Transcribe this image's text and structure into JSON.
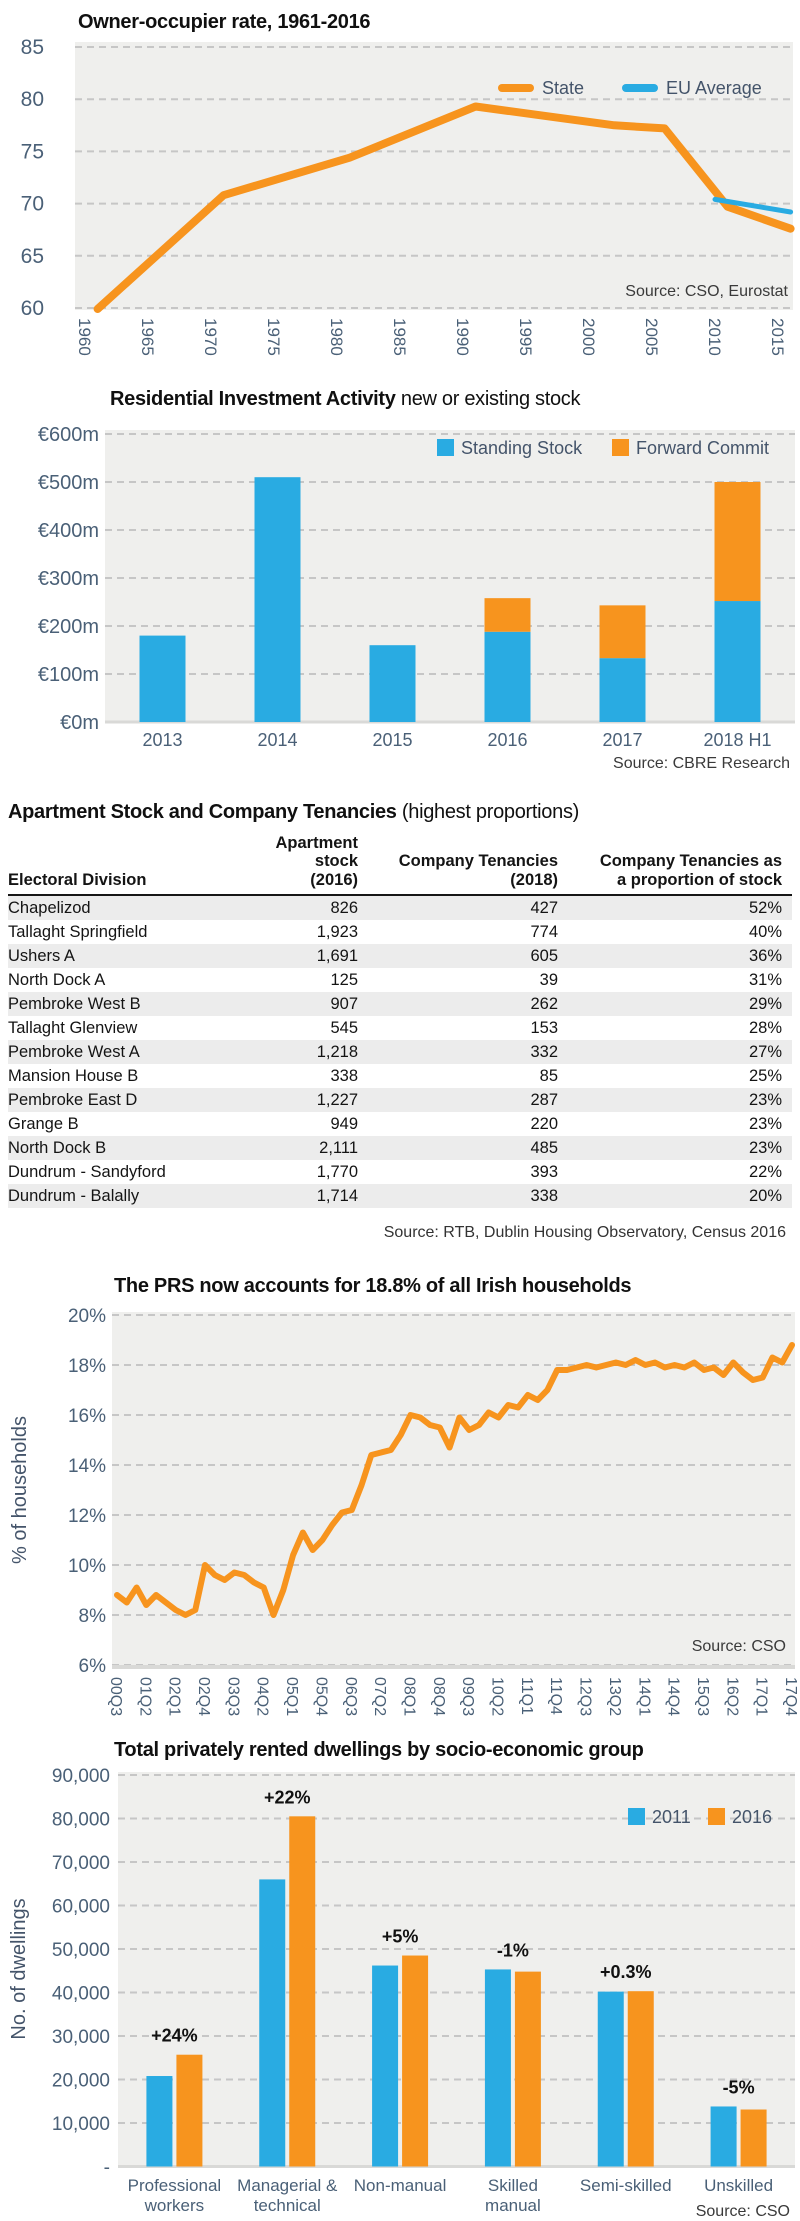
{
  "colors": {
    "orange": "#F7941E",
    "blue": "#29ABE2",
    "plot_bg": "#EFEFED",
    "grid": "#C6C6C6",
    "tick": "#4A6077",
    "legend_text": "#44546A",
    "source": "#3A3A3A",
    "baseline": "#D9D9D7",
    "table_alt_row": "#ECECEC"
  },
  "chart_data": [
    {
      "id": "owner_occupier",
      "type": "line",
      "title": "Owner-occupier rate, 1961-2016",
      "source": "Source: CSO, Eurostat",
      "legend": [
        {
          "label": "State",
          "color": "#F7941E"
        },
        {
          "label": "EU Average",
          "color": "#29ABE2"
        }
      ],
      "ylim": [
        60,
        85
      ],
      "yticks": [
        {
          "v": 60,
          "label": "60"
        },
        {
          "v": 65,
          "label": "65"
        },
        {
          "v": 70,
          "label": "70"
        },
        {
          "v": 75,
          "label": "75"
        },
        {
          "v": 80,
          "label": "80"
        },
        {
          "v": 85,
          "label": "85"
        }
      ],
      "xticks": [
        {
          "v": 1960,
          "label": "1960"
        },
        {
          "v": 1965,
          "label": "1965"
        },
        {
          "v": 1970,
          "label": "1970"
        },
        {
          "v": 1975,
          "label": "1975"
        },
        {
          "v": 1980,
          "label": "1980"
        },
        {
          "v": 1985,
          "label": "1985"
        },
        {
          "v": 1990,
          "label": "1990"
        },
        {
          "v": 1995,
          "label": "1995"
        },
        {
          "v": 2000,
          "label": "2000"
        },
        {
          "v": 2005,
          "label": "2005"
        },
        {
          "v": 2010,
          "label": "2010"
        },
        {
          "v": 2015,
          "label": "2015"
        }
      ],
      "series": [
        {
          "name": "State",
          "color": "#F7941E",
          "points": [
            [
              1961,
              59.8
            ],
            [
              1971,
              70.8
            ],
            [
              1981,
              74.4
            ],
            [
              1991,
              79.3
            ],
            [
              2002,
              77.5
            ],
            [
              2006,
              77.2
            ],
            [
              2011,
              69.7
            ],
            [
              2016,
              67.6
            ]
          ]
        },
        {
          "name": "EU Average",
          "color": "#29ABE2",
          "points": [
            [
              2010,
              70.4
            ],
            [
              2016,
              69.2
            ]
          ]
        }
      ]
    },
    {
      "id": "investment",
      "type": "stacked_bar",
      "title_bold": "Residential Investment Activity",
      "title_regular": " new or existing stock",
      "source": "Source: CBRE Research",
      "categories": [
        "2013",
        "2014",
        "2015",
        "2016",
        "2017",
        "2018 H1"
      ],
      "ylim": [
        0,
        600
      ],
      "yticks": [
        {
          "v": 0,
          "label": "€0m"
        },
        {
          "v": 100,
          "label": "€100m"
        },
        {
          "v": 200,
          "label": "€200m"
        },
        {
          "v": 300,
          "label": "€300m"
        },
        {
          "v": 400,
          "label": "€400m"
        },
        {
          "v": 500,
          "label": "€500m"
        },
        {
          "v": 600,
          "label": "€600m"
        }
      ],
      "series": [
        {
          "name": "Standing Stock",
          "color": "#29ABE2",
          "values": [
            180,
            510,
            160,
            188,
            133,
            252
          ]
        },
        {
          "name": "Forward Commit",
          "color": "#F7941E",
          "values": [
            0,
            0,
            0,
            70,
            110,
            248
          ]
        }
      ]
    },
    {
      "id": "apartment_table",
      "type": "table",
      "title_bold": "Apartment Stock and Company Tenancies",
      "title_regular": " (highest proportions)",
      "source": "Source: RTB, Dublin Housing Observatory, Census 2016",
      "columns": [
        [
          "Electoral Division"
        ],
        [
          "Apartment stock",
          "(2016)"
        ],
        [
          "Company Tenancies",
          "(2018)"
        ],
        [
          "Company Tenancies as",
          "a proportion of stock"
        ]
      ],
      "rows": [
        [
          "Chapelizod",
          "826",
          "427",
          "52%"
        ],
        [
          "Tallaght Springfield",
          "1,923",
          "774",
          "40%"
        ],
        [
          "Ushers A",
          "1,691",
          "605",
          "36%"
        ],
        [
          "North Dock A",
          "125",
          "39",
          "31%"
        ],
        [
          "Pembroke West B",
          "907",
          "262",
          "29%"
        ],
        [
          "Tallaght Glenview",
          "545",
          "153",
          "28%"
        ],
        [
          "Pembroke West A",
          "1,218",
          "332",
          "27%"
        ],
        [
          "Mansion House B",
          "338",
          "85",
          "25%"
        ],
        [
          "Pembroke East D",
          "1,227",
          "287",
          "23%"
        ],
        [
          "Grange B",
          "949",
          "220",
          "23%"
        ],
        [
          "North Dock B",
          "2,111",
          "485",
          "23%"
        ],
        [
          "Dundrum - Sandyford",
          "1,770",
          "393",
          "22%"
        ],
        [
          "Dundrum - Balally",
          "1,714",
          "338",
          "20%"
        ]
      ]
    },
    {
      "id": "prs",
      "type": "line",
      "title": "The PRS now accounts for 18.8% of all Irish households",
      "source": "Source: CSO",
      "ylabel": "% of households",
      "color": "#F7941E",
      "ylim": [
        6,
        20
      ],
      "yticks": [
        {
          "v": 6,
          "label": "6%"
        },
        {
          "v": 8,
          "label": "8%"
        },
        {
          "v": 10,
          "label": "10%"
        },
        {
          "v": 12,
          "label": "12%"
        },
        {
          "v": 14,
          "label": "14%"
        },
        {
          "v": 16,
          "label": "16%"
        },
        {
          "v": 18,
          "label": "18%"
        },
        {
          "v": 20,
          "label": "20%"
        }
      ],
      "xtick_labels": [
        "00Q3",
        "01Q2",
        "02Q1",
        "02Q4",
        "03Q3",
        "04Q2",
        "05Q1",
        "05Q4",
        "06Q3",
        "07Q2",
        "08Q1",
        "08Q4",
        "09Q3",
        "10Q2",
        "11Q1",
        "11Q4",
        "12Q3",
        "13Q2",
        "14Q1",
        "14Q4",
        "15Q3",
        "16Q2",
        "17Q1",
        "17Q4"
      ],
      "xtick_step": 3,
      "values": [
        8.8,
        8.5,
        9.1,
        8.4,
        8.8,
        8.5,
        8.2,
        8.0,
        8.2,
        10.0,
        9.6,
        9.4,
        9.7,
        9.6,
        9.3,
        9.1,
        8.0,
        9.0,
        10.4,
        11.3,
        10.6,
        11.0,
        11.6,
        12.1,
        12.2,
        13.2,
        14.4,
        14.5,
        14.6,
        15.2,
        16.0,
        15.9,
        15.6,
        15.5,
        14.7,
        15.9,
        15.4,
        15.6,
        16.1,
        15.9,
        16.4,
        16.3,
        16.8,
        16.6,
        17.0,
        17.8,
        17.8,
        17.9,
        18.0,
        17.9,
        18.0,
        18.1,
        18.0,
        18.2,
        18.0,
        18.1,
        17.9,
        18.0,
        17.9,
        18.1,
        17.8,
        17.9,
        17.6,
        18.1,
        17.7,
        17.4,
        17.5,
        18.3,
        18.1,
        18.8
      ]
    },
    {
      "id": "dwellings",
      "type": "grouped_bar",
      "title": "Total privately rented dwellings by socio-economic group",
      "source": "Source: CSO",
      "ylabel": "No. of dwellings",
      "ylim": [
        0,
        90000
      ],
      "yticks": [
        {
          "v": 0,
          "label": "-"
        },
        {
          "v": 10000,
          "label": "10,000"
        },
        {
          "v": 20000,
          "label": "20,000"
        },
        {
          "v": 30000,
          "label": "30,000"
        },
        {
          "v": 40000,
          "label": "40,000"
        },
        {
          "v": 50000,
          "label": "50,000"
        },
        {
          "v": 60000,
          "label": "60,000"
        },
        {
          "v": 70000,
          "label": "70,000"
        },
        {
          "v": 80000,
          "label": "80,000"
        },
        {
          "v": 90000,
          "label": "90,000"
        }
      ],
      "categories": [
        [
          "Professional",
          "workers"
        ],
        [
          "Managerial &",
          "technical"
        ],
        [
          "Non-manual"
        ],
        [
          "Skilled",
          "manual"
        ],
        [
          "Semi-skilled"
        ],
        [
          "Unskilled"
        ]
      ],
      "series": [
        {
          "name": "2011",
          "color": "#29ABE2",
          "values": [
            20800,
            66000,
            46200,
            45300,
            40200,
            13800
          ]
        },
        {
          "name": "2016",
          "color": "#F7941E",
          "values": [
            25700,
            80500,
            48500,
            44800,
            40300,
            13100
          ]
        }
      ],
      "pct_labels": [
        "+24%",
        "+22%",
        "+5%",
        "-1%",
        "+0.3%",
        "-5%"
      ]
    }
  ]
}
